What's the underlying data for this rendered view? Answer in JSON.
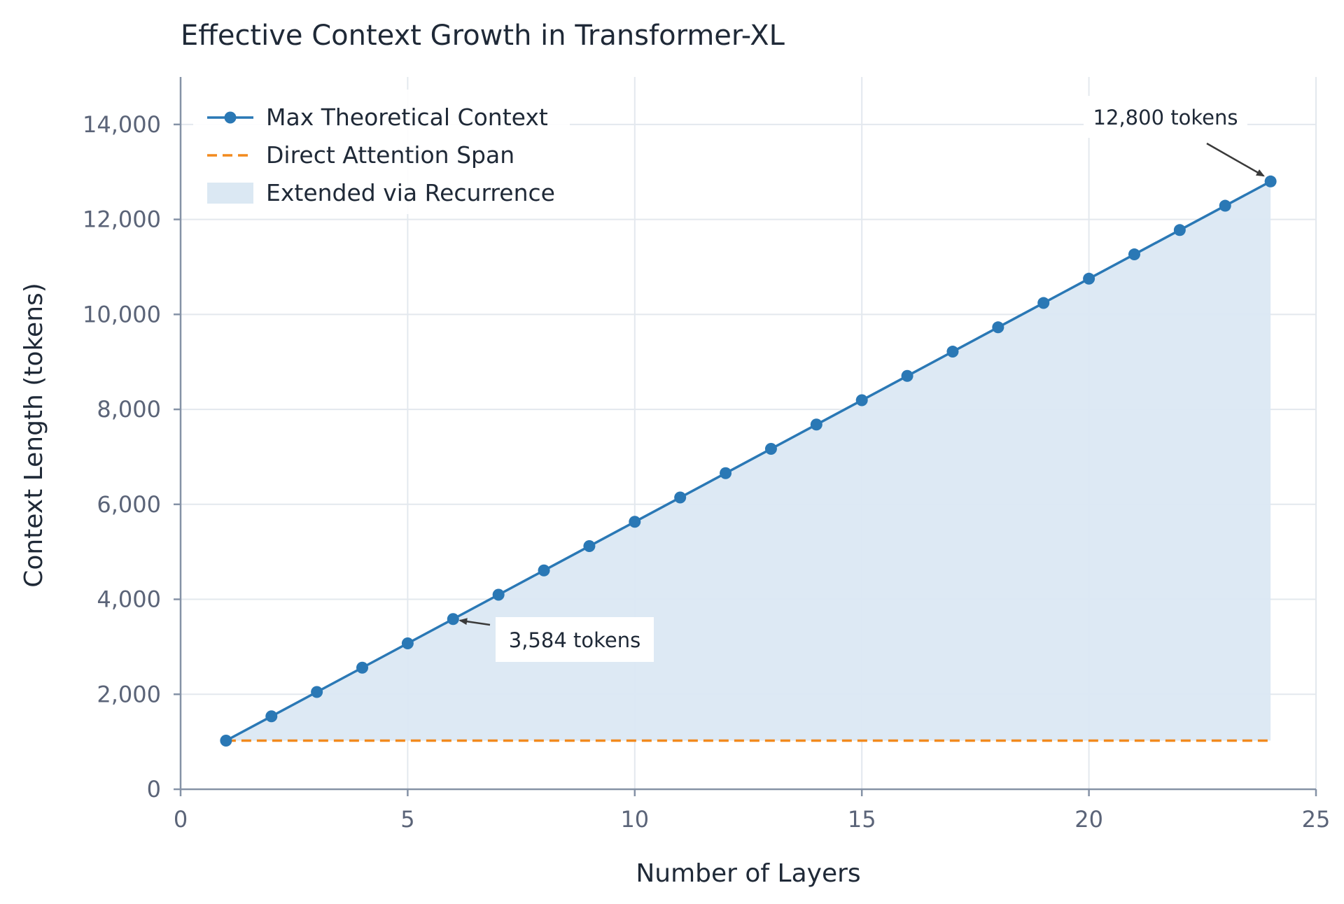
{
  "chart_data": {
    "type": "line",
    "title": "Effective Context Growth in Transformer-XL",
    "xlabel": "Number of Layers",
    "ylabel": "Context Length (tokens)",
    "xlim": [
      0,
      25
    ],
    "ylim": [
      0,
      15000
    ],
    "x_ticks": [
      0,
      5,
      10,
      15,
      20,
      25
    ],
    "x_tick_labels": [
      "0",
      "5",
      "10",
      "15",
      "20",
      "25"
    ],
    "y_ticks": [
      0,
      2000,
      4000,
      6000,
      8000,
      10000,
      12000,
      14000
    ],
    "y_tick_labels": [
      "0",
      "2,000",
      "4,000",
      "6,000",
      "8,000",
      "10,000",
      "12,000",
      "14,000"
    ],
    "grid": true,
    "legend_position": "top-left",
    "x": [
      1,
      2,
      3,
      4,
      5,
      6,
      7,
      8,
      9,
      10,
      11,
      12,
      13,
      14,
      15,
      16,
      17,
      18,
      19,
      20,
      21,
      22,
      23,
      24
    ],
    "series": [
      {
        "name": "Max Theoretical Context",
        "style": "line-markers",
        "color": "#2a78b5",
        "values": [
          1024,
          1536,
          2048,
          2560,
          3072,
          3584,
          4096,
          4608,
          5120,
          5632,
          6144,
          6656,
          7168,
          7680,
          8192,
          8704,
          9216,
          9728,
          10240,
          10752,
          11264,
          11776,
          12288,
          12800
        ]
      },
      {
        "name": "Direct Attention Span",
        "style": "dashed",
        "color": "#f28a1e",
        "values": [
          1024,
          1024,
          1024,
          1024,
          1024,
          1024,
          1024,
          1024,
          1024,
          1024,
          1024,
          1024,
          1024,
          1024,
          1024,
          1024,
          1024,
          1024,
          1024,
          1024,
          1024,
          1024,
          1024,
          1024
        ]
      },
      {
        "name": "Extended via Recurrence",
        "style": "fill-between",
        "color": "#dbe8f3"
      }
    ],
    "annotations": [
      {
        "text": "3,584 tokens",
        "x": 6,
        "y": 3584
      },
      {
        "text": "12,800 tokens",
        "x": 24,
        "y": 12800
      }
    ]
  }
}
